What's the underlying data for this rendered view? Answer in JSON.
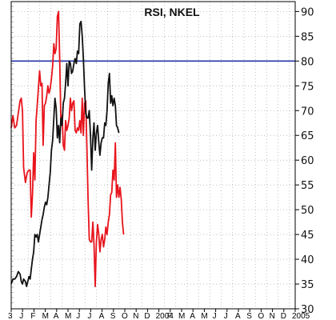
{
  "chart_data": {
    "type": "line",
    "title": "RSI, NKEL",
    "xlabel": "",
    "ylabel": "",
    "ylim": [
      30,
      92
    ],
    "x_tick_labels": [
      "3",
      "J",
      "F",
      "M",
      "A",
      "M",
      "J",
      "J",
      "A",
      "S",
      "O",
      "N",
      "D",
      "2004",
      "F",
      "M",
      "A",
      "M",
      "J",
      "J",
      "A",
      "S",
      "O",
      "N",
      "D",
      "2005"
    ],
    "y_ticks_right": [
      30,
      35,
      40,
      45,
      50,
      55,
      60,
      65,
      70,
      75,
      80,
      85,
      90
    ],
    "reference_line": 80,
    "grid": true,
    "legend": "none",
    "x_range": [
      0,
      24
    ],
    "series": [
      {
        "color": "#e8141c",
        "axis": "right",
        "points": [
          [
            0.0,
            66.5
          ],
          [
            0.15,
            69.0
          ],
          [
            0.3,
            66.5
          ],
          [
            0.45,
            67.0
          ],
          [
            0.6,
            69.5
          ],
          [
            0.75,
            72.0
          ],
          [
            0.85,
            72.5
          ],
          [
            0.95,
            70.0
          ],
          [
            1.05,
            58.5
          ],
          [
            1.2,
            55.5
          ],
          [
            1.35,
            57.5
          ],
          [
            1.5,
            58.0
          ],
          [
            1.6,
            58.0
          ],
          [
            1.7,
            48.5
          ],
          [
            1.8,
            53.0
          ],
          [
            1.9,
            61.5
          ],
          [
            2.0,
            56.0
          ],
          [
            2.1,
            68.0
          ],
          [
            2.2,
            71.0
          ],
          [
            2.3,
            74.5
          ],
          [
            2.4,
            78.0
          ],
          [
            2.5,
            75.0
          ],
          [
            2.6,
            75.5
          ],
          [
            2.7,
            63.0
          ],
          [
            2.8,
            71.0
          ],
          [
            2.9,
            71.5
          ],
          [
            3.0,
            73.0
          ],
          [
            3.1,
            75.0
          ],
          [
            3.2,
            73.5
          ],
          [
            3.3,
            74.5
          ],
          [
            3.4,
            76.5
          ],
          [
            3.5,
            79.0
          ],
          [
            3.6,
            83.5
          ],
          [
            3.7,
            81.5
          ],
          [
            3.8,
            82.5
          ],
          [
            3.9,
            89.0
          ],
          [
            4.0,
            90.0
          ],
          [
            4.1,
            80.5
          ],
          [
            4.2,
            68.0
          ],
          [
            4.3,
            69.0
          ],
          [
            4.4,
            63.0
          ],
          [
            4.5,
            62.0
          ],
          [
            4.6,
            68.0
          ],
          [
            4.7,
            66.0
          ],
          [
            4.8,
            67.0
          ],
          [
            4.9,
            68.5
          ],
          [
            5.0,
            72.5
          ],
          [
            5.1,
            70.0
          ],
          [
            5.2,
            71.5
          ],
          [
            5.3,
            72.0
          ],
          [
            5.4,
            66.0
          ],
          [
            5.5,
            65.5
          ],
          [
            5.6,
            66.5
          ],
          [
            5.7,
            66.0
          ],
          [
            5.8,
            68.0
          ],
          [
            5.9,
            65.5
          ],
          [
            6.0,
            72.5
          ],
          [
            6.1,
            65.0
          ],
          [
            6.2,
            71.5
          ],
          [
            6.3,
            72.0
          ],
          [
            6.4,
            62.0
          ],
          [
            6.5,
            52.0
          ],
          [
            6.6,
            44.0
          ],
          [
            6.7,
            43.5
          ],
          [
            6.8,
            43.5
          ],
          [
            6.9,
            47.5
          ],
          [
            7.0,
            43.0
          ],
          [
            7.1,
            34.5
          ],
          [
            7.2,
            43.5
          ],
          [
            7.3,
            47.0
          ],
          [
            7.4,
            45.0
          ],
          [
            7.5,
            41.5
          ],
          [
            7.6,
            44.0
          ],
          [
            7.7,
            45.0
          ],
          [
            7.8,
            42.5
          ],
          [
            7.9,
            44.0
          ],
          [
            8.0,
            46.5
          ],
          [
            8.1,
            45.0
          ],
          [
            8.2,
            47.5
          ],
          [
            8.3,
            49.0
          ],
          [
            8.4,
            53.0
          ],
          [
            8.5,
            53.5
          ],
          [
            8.6,
            58.0
          ],
          [
            8.7,
            56.0
          ],
          [
            8.8,
            63.5
          ],
          [
            8.9,
            52.5
          ],
          [
            9.0,
            55.0
          ],
          [
            9.1,
            52.5
          ],
          [
            9.2,
            54.5
          ],
          [
            9.3,
            52.0
          ],
          [
            9.4,
            47.5
          ],
          [
            9.5,
            45.0
          ]
        ]
      },
      {
        "color": "#111111",
        "axis": "right",
        "points": [
          [
            0.0,
            35.0
          ],
          [
            0.15,
            36.0
          ],
          [
            0.3,
            36.0
          ],
          [
            0.45,
            36.5
          ],
          [
            0.6,
            37.5
          ],
          [
            0.75,
            37.0
          ],
          [
            0.85,
            35.5
          ],
          [
            0.95,
            35.0
          ],
          [
            1.05,
            36.0
          ],
          [
            1.2,
            35.5
          ],
          [
            1.3,
            34.5
          ],
          [
            1.4,
            35.5
          ],
          [
            1.5,
            36.5
          ],
          [
            1.6,
            36.0
          ],
          [
            1.7,
            38.0
          ],
          [
            1.8,
            40.0
          ],
          [
            1.9,
            41.5
          ],
          [
            2.0,
            45.0
          ],
          [
            2.1,
            44.5
          ],
          [
            2.2,
            45.0
          ],
          [
            2.3,
            43.5
          ],
          [
            2.4,
            45.0
          ],
          [
            2.5,
            46.5
          ],
          [
            2.6,
            48.0
          ],
          [
            2.7,
            49.0
          ],
          [
            2.8,
            50.5
          ],
          [
            2.9,
            51.5
          ],
          [
            3.0,
            51.0
          ],
          [
            3.1,
            52.5
          ],
          [
            3.2,
            55.0
          ],
          [
            3.3,
            57.5
          ],
          [
            3.4,
            62.0
          ],
          [
            3.5,
            64.0
          ],
          [
            3.6,
            68.5
          ],
          [
            3.7,
            72.5
          ],
          [
            3.8,
            70.5
          ],
          [
            3.9,
            64.5
          ],
          [
            4.0,
            67.0
          ],
          [
            4.1,
            63.5
          ],
          [
            4.2,
            68.5
          ],
          [
            4.3,
            67.0
          ],
          [
            4.4,
            71.5
          ],
          [
            4.5,
            72.5
          ],
          [
            4.6,
            75.5
          ],
          [
            4.7,
            79.5
          ],
          [
            4.8,
            75.0
          ],
          [
            4.9,
            80.0
          ],
          [
            5.0,
            79.5
          ],
          [
            5.1,
            77.5
          ],
          [
            5.2,
            78.0
          ],
          [
            5.3,
            79.5
          ],
          [
            5.4,
            80.5
          ],
          [
            5.5,
            79.5
          ],
          [
            5.6,
            82.0
          ],
          [
            5.7,
            81.5
          ],
          [
            5.8,
            87.5
          ],
          [
            5.9,
            88.0
          ],
          [
            6.0,
            85.0
          ],
          [
            6.1,
            80.5
          ],
          [
            6.2,
            74.5
          ],
          [
            6.3,
            69.5
          ],
          [
            6.4,
            68.5
          ],
          [
            6.5,
            68.5
          ],
          [
            6.6,
            70.0
          ],
          [
            6.7,
            65.0
          ],
          [
            6.8,
            58.0
          ],
          [
            6.9,
            64.5
          ],
          [
            7.0,
            67.5
          ],
          [
            7.1,
            62.0
          ],
          [
            7.2,
            65.5
          ],
          [
            7.3,
            67.0
          ],
          [
            7.4,
            63.5
          ],
          [
            7.5,
            61.0
          ],
          [
            7.6,
            63.5
          ],
          [
            7.7,
            64.5
          ],
          [
            7.8,
            64.5
          ],
          [
            7.9,
            67.5
          ],
          [
            8.0,
            67.0
          ],
          [
            8.1,
            70.0
          ],
          [
            8.2,
            75.5
          ],
          [
            8.3,
            77.5
          ],
          [
            8.4,
            71.5
          ],
          [
            8.5,
            73.0
          ],
          [
            8.6,
            71.0
          ],
          [
            8.7,
            72.5
          ],
          [
            8.8,
            71.0
          ],
          [
            8.9,
            67.0
          ],
          [
            9.0,
            66.5
          ],
          [
            9.1,
            65.5
          ]
        ]
      }
    ]
  }
}
